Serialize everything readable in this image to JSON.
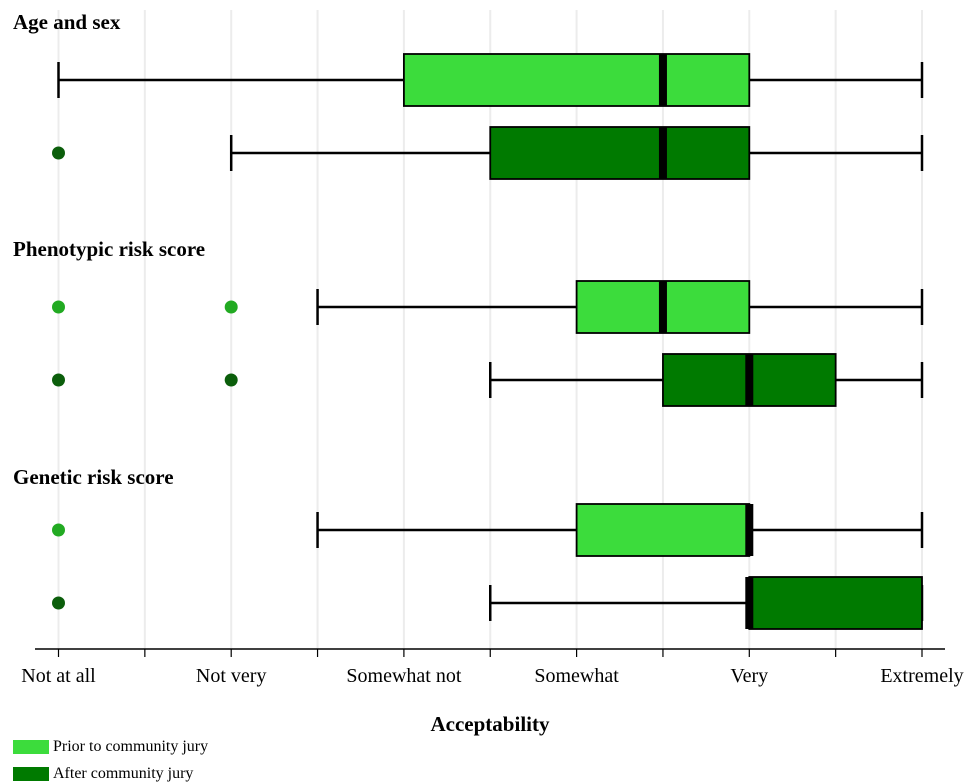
{
  "chart_data": {
    "type": "boxplot",
    "xlabel": "Acceptability",
    "categories": [
      "Not at all",
      "Not very",
      "Somewhat not",
      "Somewhat",
      "Very",
      "Extremely"
    ],
    "xlim": [
      0,
      5
    ],
    "grid": true,
    "legend_position": "bottom-left",
    "series_styles": [
      {
        "name": "Prior to community jury",
        "color": "#3cdc3c",
        "outlier_color": "#22aa22"
      },
      {
        "name": "After community jury",
        "color": "#007a00",
        "outlier_color": "#0b5e0b"
      }
    ],
    "groups": [
      {
        "title": "Age and sex",
        "boxes": [
          {
            "series": 0,
            "whisker_low": 0,
            "q1": 2,
            "median": 3.5,
            "q3": 4,
            "whisker_high": 5,
            "outliers": []
          },
          {
            "series": 1,
            "whisker_low": 1,
            "q1": 2.5,
            "median": 3.5,
            "q3": 4,
            "whisker_high": 5,
            "outliers": [
              0
            ]
          }
        ]
      },
      {
        "title": "Phenotypic risk score",
        "boxes": [
          {
            "series": 0,
            "whisker_low": 1.5,
            "q1": 3,
            "median": 3.5,
            "q3": 4,
            "whisker_high": 5,
            "outliers": [
              0,
              1
            ]
          },
          {
            "series": 1,
            "whisker_low": 2.5,
            "q1": 3.5,
            "median": 4,
            "q3": 4.5,
            "whisker_high": 5,
            "outliers": [
              0,
              1
            ]
          }
        ]
      },
      {
        "title": "Genetic risk score",
        "boxes": [
          {
            "series": 0,
            "whisker_low": 1.5,
            "q1": 3,
            "median": 4,
            "q3": 4,
            "whisker_high": 5,
            "outliers": [
              0
            ]
          },
          {
            "series": 1,
            "whisker_low": 2.5,
            "q1": 4,
            "median": 4,
            "q3": 5,
            "whisker_high": 5,
            "outliers": [
              0
            ]
          }
        ]
      }
    ]
  }
}
